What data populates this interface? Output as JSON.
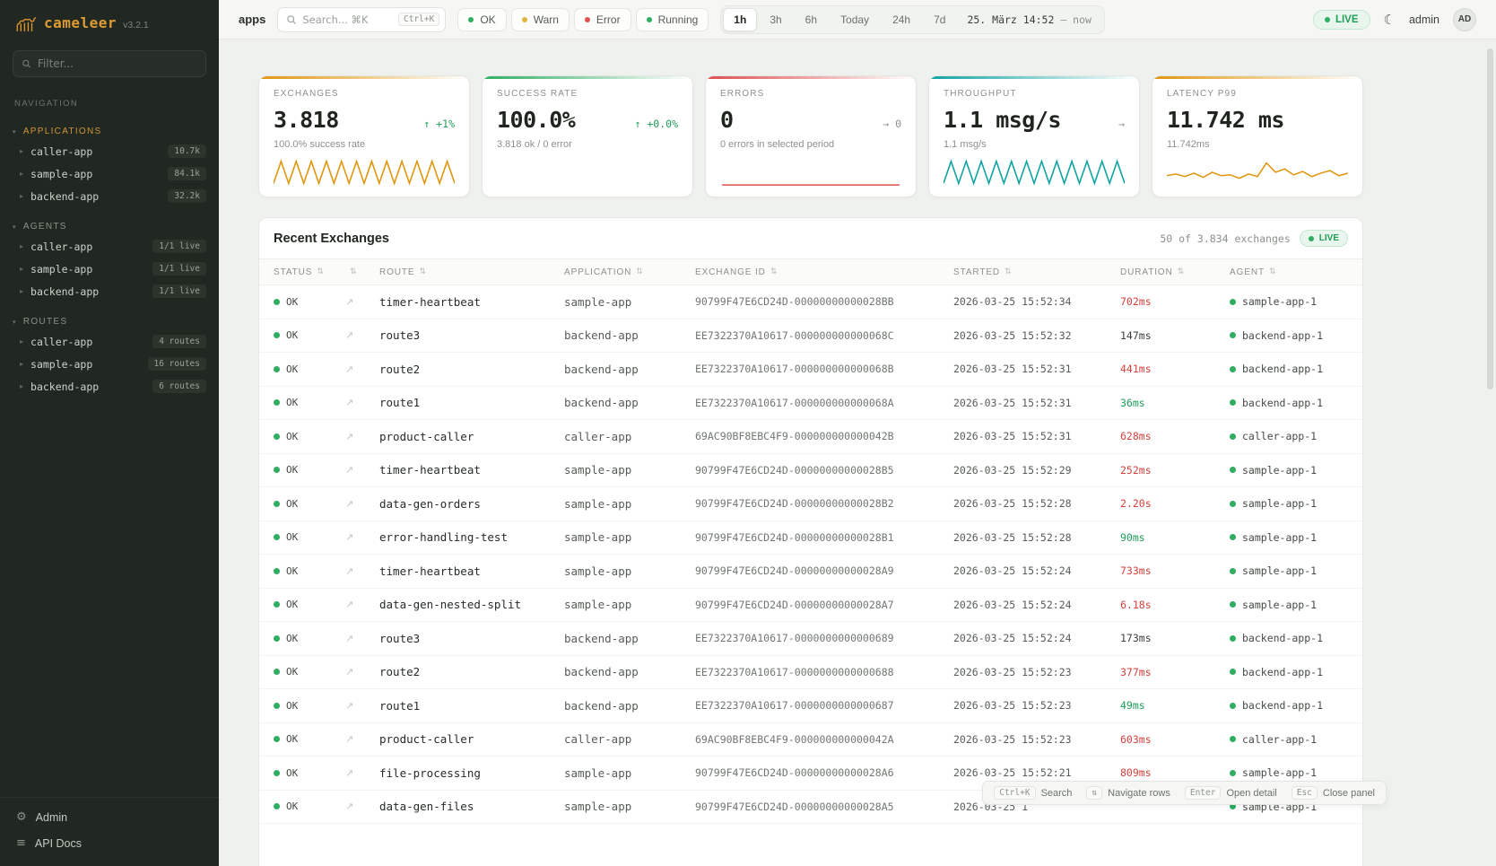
{
  "app": {
    "name": "cameleer",
    "version": "v3.2.1"
  },
  "sidebar": {
    "filter_placeholder": "Filter...",
    "nav_label": "NAVIGATION",
    "applications": {
      "label": "APPLICATIONS",
      "items": [
        {
          "name": "caller-app",
          "badge": "10.7k"
        },
        {
          "name": "sample-app",
          "badge": "84.1k"
        },
        {
          "name": "backend-app",
          "badge": "32.2k"
        }
      ]
    },
    "agents": {
      "label": "AGENTS",
      "items": [
        {
          "name": "caller-app",
          "badge": "1/1 live"
        },
        {
          "name": "sample-app",
          "badge": "1/1 live"
        },
        {
          "name": "backend-app",
          "badge": "1/1 live"
        }
      ]
    },
    "routes": {
      "label": "ROUTES",
      "items": [
        {
          "name": "caller-app",
          "badge": "4 routes"
        },
        {
          "name": "sample-app",
          "badge": "16 routes"
        },
        {
          "name": "backend-app",
          "badge": "6 routes"
        }
      ]
    },
    "footer": {
      "admin": "Admin",
      "api_docs": "API Docs"
    }
  },
  "topbar": {
    "page": "apps",
    "search_placeholder": "Search... ⌘K",
    "search_shortcut": "Ctrl+K",
    "chips": [
      {
        "label": "OK",
        "color": "#2fae63"
      },
      {
        "label": "Warn",
        "color": "#e0b53f"
      },
      {
        "label": "Error",
        "color": "#e05252"
      },
      {
        "label": "Running",
        "color": "#2fae63"
      }
    ],
    "ranges": [
      {
        "label": "1h",
        "cls": "active"
      },
      {
        "label": "3h",
        "cls": ""
      },
      {
        "label": "6h",
        "cls": ""
      },
      {
        "label": "Today",
        "cls": ""
      },
      {
        "label": "24h",
        "cls": ""
      },
      {
        "label": "7d",
        "cls": ""
      }
    ],
    "datetime": "25. März 14:52",
    "datetime_suffix": "—  now",
    "live": "LIVE",
    "user": "admin",
    "avatar": "AD"
  },
  "cards": [
    {
      "title": "EXCHANGES",
      "value": "3.818",
      "delta": "↑ +1%",
      "delta_color": "#1e9e57",
      "sub": "100.0% success rate",
      "accent": "#e0960f",
      "spark": "zigzag"
    },
    {
      "title": "SUCCESS RATE",
      "value": "100.0%",
      "delta": "↑ +0.0%",
      "delta_color": "#1e9e57",
      "sub": "3.818 ok / 0 error",
      "accent": "#2fae63",
      "spark": "none"
    },
    {
      "title": "ERRORS",
      "value": "0",
      "delta": "→ 0",
      "delta_color": "#8b918b",
      "sub": "0 errors in selected period",
      "accent": "#dd4f4f",
      "spark": "flat"
    },
    {
      "title": "THROUGHPUT",
      "value": "1.1 msg/s",
      "delta": "→",
      "delta_color": "#8b918b",
      "sub": "1.1 msg/s",
      "accent": "#12a3a3",
      "spark": "zigzag"
    },
    {
      "title": "LATENCY P99",
      "value": "11.742 ms",
      "delta": "",
      "delta_color": "#8b918b",
      "sub": "11.742ms",
      "accent": "#e0960f",
      "spark": "noisy"
    }
  ],
  "table": {
    "title": "Recent Exchanges",
    "meta": "50 of 3.834 exchanges",
    "live": "LIVE",
    "columns": [
      {
        "label": "STATUS",
        "cls": "c-status"
      },
      {
        "label": "",
        "cls": "c-arrow"
      },
      {
        "label": "ROUTE",
        "cls": "c-route"
      },
      {
        "label": "APPLICATION",
        "cls": "c-app"
      },
      {
        "label": "EXCHANGE ID",
        "cls": "c-id"
      },
      {
        "label": "STARTED",
        "cls": "c-started"
      },
      {
        "label": "DURATION",
        "cls": "c-dur"
      },
      {
        "label": "AGENT",
        "cls": "c-agent"
      }
    ],
    "rows": [
      {
        "status": "OK",
        "route": "timer-heartbeat",
        "application": "sample-app",
        "exchange_id": "90799F47E6CD24D-00000000000028BB",
        "started": "2026-03-25 15:52:34",
        "duration": "702ms",
        "dur_cls": "red",
        "agent": "sample-app-1"
      },
      {
        "status": "OK",
        "route": "route3",
        "application": "backend-app",
        "exchange_id": "EE7322370A10617-000000000000068C",
        "started": "2026-03-25 15:52:32",
        "duration": "147ms",
        "dur_cls": "",
        "agent": "backend-app-1"
      },
      {
        "status": "OK",
        "route": "route2",
        "application": "backend-app",
        "exchange_id": "EE7322370A10617-000000000000068B",
        "started": "2026-03-25 15:52:31",
        "duration": "441ms",
        "dur_cls": "red",
        "agent": "backend-app-1"
      },
      {
        "status": "OK",
        "route": "route1",
        "application": "backend-app",
        "exchange_id": "EE7322370A10617-000000000000068A",
        "started": "2026-03-25 15:52:31",
        "duration": "36ms",
        "dur_cls": "green",
        "agent": "backend-app-1"
      },
      {
        "status": "OK",
        "route": "product-caller",
        "application": "caller-app",
        "exchange_id": "69AC90BF8EBC4F9-000000000000042B",
        "started": "2026-03-25 15:52:31",
        "duration": "628ms",
        "dur_cls": "red",
        "agent": "caller-app-1"
      },
      {
        "status": "OK",
        "route": "timer-heartbeat",
        "application": "sample-app",
        "exchange_id": "90799F47E6CD24D-00000000000028B5",
        "started": "2026-03-25 15:52:29",
        "duration": "252ms",
        "dur_cls": "red",
        "agent": "sample-app-1"
      },
      {
        "status": "OK",
        "route": "data-gen-orders",
        "application": "sample-app",
        "exchange_id": "90799F47E6CD24D-00000000000028B2",
        "started": "2026-03-25 15:52:28",
        "duration": "2.20s",
        "dur_cls": "red",
        "agent": "sample-app-1"
      },
      {
        "status": "OK",
        "route": "error-handling-test",
        "application": "sample-app",
        "exchange_id": "90799F47E6CD24D-00000000000028B1",
        "started": "2026-03-25 15:52:28",
        "duration": "90ms",
        "dur_cls": "green",
        "agent": "sample-app-1"
      },
      {
        "status": "OK",
        "route": "timer-heartbeat",
        "application": "sample-app",
        "exchange_id": "90799F47E6CD24D-00000000000028A9",
        "started": "2026-03-25 15:52:24",
        "duration": "733ms",
        "dur_cls": "red",
        "agent": "sample-app-1"
      },
      {
        "status": "OK",
        "route": "data-gen-nested-split",
        "application": "sample-app",
        "exchange_id": "90799F47E6CD24D-00000000000028A7",
        "started": "2026-03-25 15:52:24",
        "duration": "6.18s",
        "dur_cls": "red",
        "agent": "sample-app-1"
      },
      {
        "status": "OK",
        "route": "route3",
        "application": "backend-app",
        "exchange_id": "EE7322370A10617-0000000000000689",
        "started": "2026-03-25 15:52:24",
        "duration": "173ms",
        "dur_cls": "",
        "agent": "backend-app-1"
      },
      {
        "status": "OK",
        "route": "route2",
        "application": "backend-app",
        "exchange_id": "EE7322370A10617-0000000000000688",
        "started": "2026-03-25 15:52:23",
        "duration": "377ms",
        "dur_cls": "red",
        "agent": "backend-app-1"
      },
      {
        "status": "OK",
        "route": "route1",
        "application": "backend-app",
        "exchange_id": "EE7322370A10617-0000000000000687",
        "started": "2026-03-25 15:52:23",
        "duration": "49ms",
        "dur_cls": "green",
        "agent": "backend-app-1"
      },
      {
        "status": "OK",
        "route": "product-caller",
        "application": "caller-app",
        "exchange_id": "69AC90BF8EBC4F9-000000000000042A",
        "started": "2026-03-25 15:52:23",
        "duration": "603ms",
        "dur_cls": "red",
        "agent": "caller-app-1"
      },
      {
        "status": "OK",
        "route": "file-processing",
        "application": "sample-app",
        "exchange_id": "90799F47E6CD24D-00000000000028A6",
        "started": "2026-03-25 15:52:21",
        "duration": "809ms",
        "dur_cls": "red",
        "agent": "sample-app-1"
      },
      {
        "status": "OK",
        "route": "data-gen-files",
        "application": "sample-app",
        "exchange_id": "90799F47E6CD24D-00000000000028A5",
        "started": "2026-03-25 1",
        "duration": "",
        "dur_cls": "",
        "agent": "sample-app-1"
      }
    ]
  },
  "hints": [
    {
      "key": "Ctrl+K",
      "label": "Search"
    },
    {
      "key": "⇅",
      "label": "Navigate rows"
    },
    {
      "key": "Enter",
      "label": "Open detail"
    },
    {
      "key": "Esc",
      "label": "Close panel"
    }
  ]
}
